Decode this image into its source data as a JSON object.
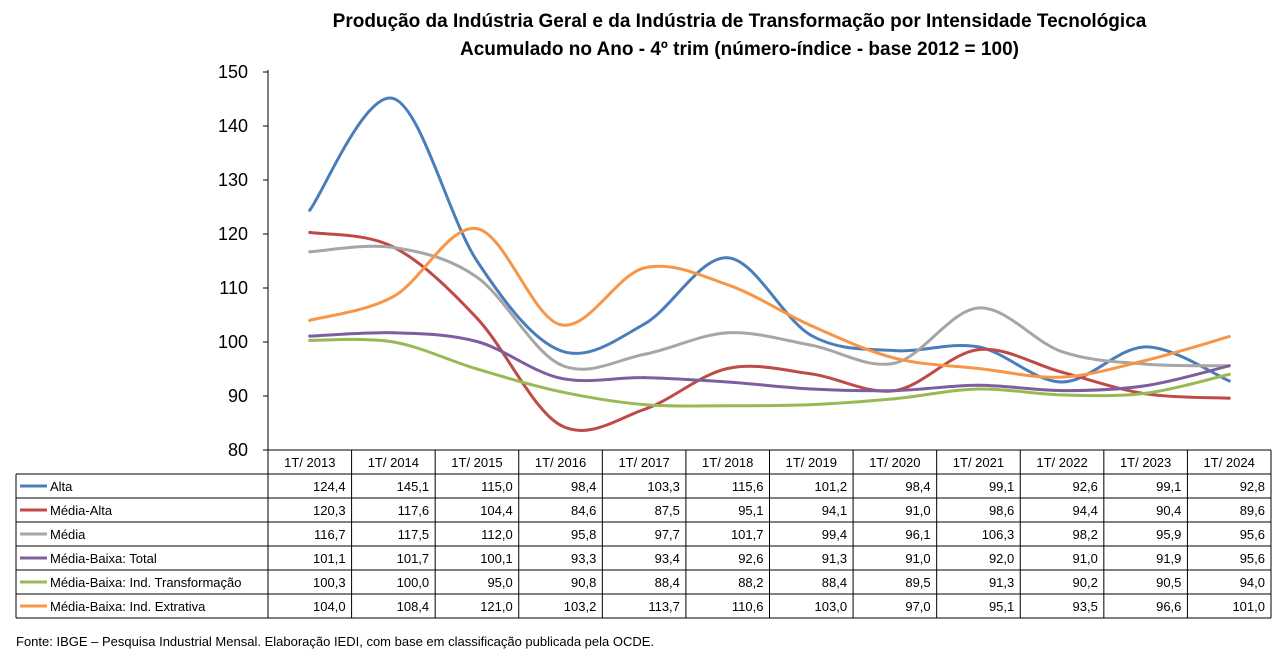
{
  "chart_data": {
    "type": "line",
    "title": "Produção da Indústria Geral e da Indústria de Transformação por Intensidade Tecnológica",
    "subtitle": "Acumulado no Ano - 4º trim (número-índice - base 2012 = 100)",
    "xlabel": "",
    "ylabel": "",
    "ylim": [
      80,
      150
    ],
    "yticks": [
      "150",
      "140",
      "130",
      "120",
      "110",
      "100",
      "90",
      "80"
    ],
    "grid": false,
    "legend": "data table below chart",
    "categories": [
      "1T/ 2013",
      "1T/ 2014",
      "1T/ 2015",
      "1T/ 2016",
      "1T/ 2017",
      "1T/ 2018",
      "1T/ 2019",
      "1T/ 2020",
      "1T/ 2021",
      "1T/ 2022",
      "1T/ 2023",
      "1T/ 2024"
    ],
    "series": [
      {
        "name": "Alta",
        "color": "#4a7ebb",
        "values": [
          124.4,
          145.1,
          115.0,
          98.4,
          103.3,
          115.6,
          101.2,
          98.4,
          99.1,
          92.6,
          99.1,
          92.8
        ],
        "labels": [
          "124,4",
          "145,1",
          "115,0",
          "98,4",
          "103,3",
          "115,6",
          "101,2",
          "98,4",
          "99,1",
          "92,6",
          "99,1",
          "92,8"
        ]
      },
      {
        "name": "Média-Alta",
        "color": "#be4b48",
        "values": [
          120.3,
          117.6,
          104.4,
          84.6,
          87.5,
          95.1,
          94.1,
          91.0,
          98.6,
          94.4,
          90.4,
          89.6
        ],
        "labels": [
          "120,3",
          "117,6",
          "104,4",
          "84,6",
          "87,5",
          "95,1",
          "94,1",
          "91,0",
          "98,6",
          "94,4",
          "90,4",
          "89,6"
        ]
      },
      {
        "name": "Média",
        "color": "#a6a6a6",
        "values": [
          116.7,
          117.5,
          112.0,
          95.8,
          97.7,
          101.7,
          99.4,
          96.1,
          106.3,
          98.2,
          95.9,
          95.6
        ],
        "labels": [
          "116,7",
          "117,5",
          "112,0",
          "95,8",
          "97,7",
          "101,7",
          "99,4",
          "96,1",
          "106,3",
          "98,2",
          "95,9",
          "95,6"
        ]
      },
      {
        "name": "Média-Baixa: Total",
        "color": "#7d5fa0",
        "values": [
          101.1,
          101.7,
          100.1,
          93.3,
          93.4,
          92.6,
          91.3,
          91.0,
          92.0,
          91.0,
          91.9,
          95.6
        ],
        "labels": [
          "101,1",
          "101,7",
          "100,1",
          "93,3",
          "93,4",
          "92,6",
          "91,3",
          "91,0",
          "92,0",
          "91,0",
          "91,9",
          "95,6"
        ]
      },
      {
        "name": "Média-Baixa: Ind. Transformação",
        "color": "#98b954",
        "values": [
          100.3,
          100.0,
          95.0,
          90.8,
          88.4,
          88.2,
          88.4,
          89.5,
          91.3,
          90.2,
          90.5,
          94.0
        ],
        "labels": [
          "100,3",
          "100,0",
          "95,0",
          "90,8",
          "88,4",
          "88,2",
          "88,4",
          "89,5",
          "91,3",
          "90,2",
          "90,5",
          "94,0"
        ]
      },
      {
        "name": "Média-Baixa: Ind. Extrativa",
        "color": "#f79646",
        "values": [
          104.0,
          108.4,
          121.0,
          103.2,
          113.7,
          110.6,
          103.0,
          97.0,
          95.1,
          93.5,
          96.6,
          101.0
        ],
        "labels": [
          "104,0",
          "108,4",
          "121,0",
          "103,2",
          "113,7",
          "110,6",
          "103,0",
          "97,0",
          "95,1",
          "93,5",
          "96,6",
          "101,0"
        ]
      }
    ]
  },
  "footer": {
    "source": "Fonte: IBGE – Pesquisa Industrial Mensal. Elaboração IEDI, com base em classificação publicada pela OCDE."
  }
}
